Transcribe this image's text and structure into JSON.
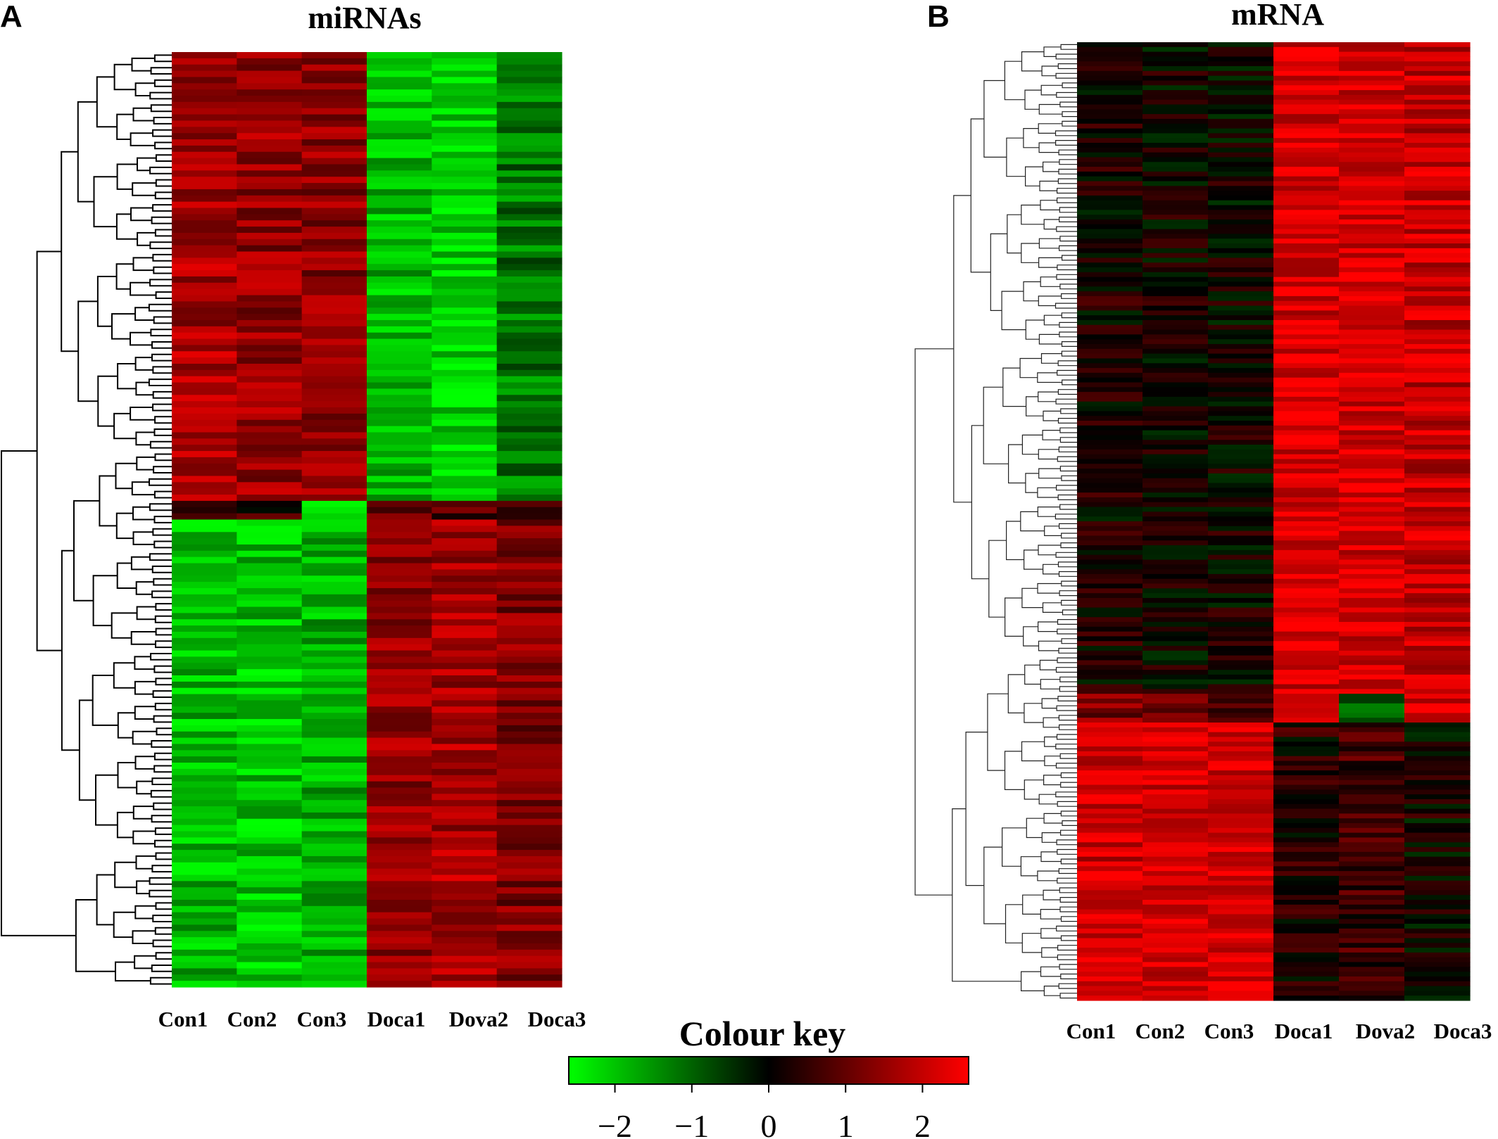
{
  "chart_data": [
    {
      "type": "heatmap",
      "panel": "A",
      "title": "miRNAs",
      "columns": [
        "Con1",
        "Con2",
        "Con3",
        "Doca1",
        "Dova2",
        "Doca3"
      ],
      "row_count": 150,
      "clusters": [
        {
          "name": "rows 1-72",
          "mean_values": [
            1.7,
            1.5,
            1.4,
            -1.9,
            -2.2,
            -1.2
          ]
        },
        {
          "name": "rows 73-75",
          "mean_values": [
            0.6,
            0.5,
            -2.6,
            0.9,
            0.8,
            0.9
          ]
        },
        {
          "name": "rows 76-150",
          "mean_values": [
            -1.9,
            -2.0,
            -1.8,
            1.5,
            1.7,
            1.3
          ]
        }
      ],
      "value_range": [
        -2.6,
        2.6
      ]
    },
    {
      "type": "heatmap",
      "panel": "B",
      "title": "mRNA",
      "columns": [
        "Con1",
        "Con2",
        "Con3",
        "Doca1",
        "Dova2",
        "Doca3"
      ],
      "row_count": 200,
      "clusters": [
        {
          "name": "rows 1-136",
          "mean_values": [
            0.2,
            0.1,
            0.1,
            2.2,
            2.2,
            2.0
          ]
        },
        {
          "name": "rows 137-142",
          "mean_values": [
            1.3,
            1.0,
            0.6,
            2.0,
            -0.8,
            2.1
          ]
        },
        {
          "name": "rows 143-200",
          "mean_values": [
            2.1,
            2.2,
            2.2,
            0.3,
            0.6,
            0.1
          ]
        }
      ],
      "value_range": [
        -2.6,
        2.6
      ]
    }
  ],
  "colour_key": {
    "title": "Colour key",
    "range": [
      -2.6,
      2.6
    ],
    "ticks": [
      -2,
      -1,
      0,
      1,
      2
    ],
    "tick_labels": [
      "−2",
      "−1",
      "0",
      "1",
      "2"
    ],
    "low_color": "#00ff00",
    "mid_color": "#000000",
    "high_color": "#ff0000"
  },
  "panel_letters": [
    "A",
    "B"
  ]
}
